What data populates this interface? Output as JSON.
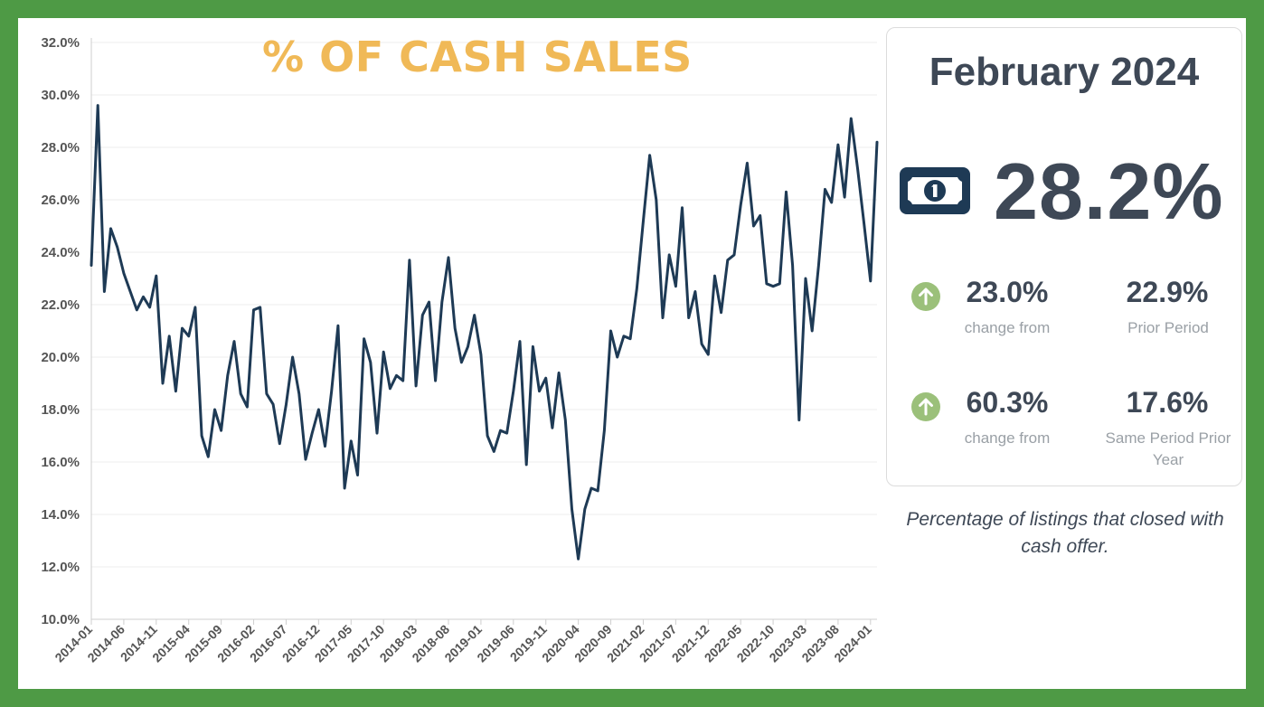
{
  "title": "% OF CASH SALES",
  "card": {
    "period": "February 2024",
    "value": "28.2%",
    "icon": "dollar-bill-icon",
    "comparisons": [
      {
        "change": "23.0%",
        "change_label": "change from",
        "reference_value": "22.9%",
        "reference_label": "Prior Period",
        "direction_icon": "arrow-up-circle-icon"
      },
      {
        "change": "60.3%",
        "change_label": "change from",
        "reference_value": "17.6%",
        "reference_label": "Same Period Prior Year",
        "direction_icon": "arrow-up-circle-icon"
      }
    ]
  },
  "description": "Percentage of listings that closed with cash offer.",
  "colors": {
    "line": "#1e3a55",
    "title": "#f0b957",
    "up_icon": "#9bc07a",
    "border": "#4e9a45"
  },
  "chart_data": {
    "type": "line",
    "title": "% OF CASH SALES",
    "x_start": "2014-01",
    "x_end": "2024-02",
    "x_tick_labels": [
      "2014-01",
      "2014-06",
      "2014-11",
      "2015-04",
      "2015-09",
      "2016-02",
      "2016-07",
      "2016-12",
      "2017-05",
      "2017-10",
      "2018-03",
      "2018-08",
      "2019-01",
      "2019-06",
      "2019-11",
      "2020-04",
      "2020-09",
      "2021-02",
      "2021-07",
      "2021-12",
      "2022-05",
      "2022-10",
      "2023-03",
      "2023-08",
      "2024-01"
    ],
    "y_tick_labels": [
      "10.0%",
      "12.0%",
      "14.0%",
      "16.0%",
      "18.0%",
      "20.0%",
      "22.0%",
      "24.0%",
      "26.0%",
      "28.0%",
      "30.0%",
      "32.0%"
    ],
    "ylim": [
      10,
      32
    ],
    "grid": true,
    "series": [
      {
        "values": [
          23.5,
          29.6,
          22.5,
          24.9,
          24.2,
          23.2,
          22.5,
          21.8,
          22.3,
          21.9,
          23.1,
          19.0,
          20.8,
          18.7,
          21.1,
          20.8,
          21.9,
          17.0,
          16.2,
          18.0,
          17.2,
          19.3,
          20.6,
          18.6,
          18.1,
          21.8,
          21.9,
          18.6,
          18.2,
          16.7,
          18.2,
          20.0,
          18.6,
          16.1,
          17.1,
          18.0,
          16.6,
          18.7,
          21.2,
          15.0,
          16.8,
          15.5,
          20.7,
          19.8,
          17.1,
          20.2,
          18.8,
          19.3,
          19.1,
          23.7,
          18.9,
          21.6,
          22.1,
          19.1,
          22.1,
          23.8,
          21.1,
          19.8,
          20.4,
          21.6,
          20.1,
          17.0,
          16.4,
          17.2,
          17.1,
          18.7,
          20.6,
          15.9,
          20.4,
          18.7,
          19.2,
          17.3,
          19.4,
          17.6,
          14.2,
          12.3,
          14.2,
          15.0,
          14.9,
          17.2,
          21.0,
          20.0,
          20.8,
          20.7,
          22.6,
          25.2,
          27.7,
          26.0,
          21.5,
          23.9,
          22.7,
          25.7,
          21.5,
          22.5,
          20.5,
          20.1,
          23.1,
          21.7,
          23.7,
          23.9,
          25.8,
          27.4,
          25.0,
          25.4,
          22.8,
          22.7,
          22.8,
          26.3,
          23.5,
          17.6,
          23.0,
          21.0,
          23.5,
          26.4,
          25.9,
          28.1,
          26.1,
          29.1,
          27.2,
          25.1,
          22.9,
          28.2
        ]
      }
    ]
  }
}
